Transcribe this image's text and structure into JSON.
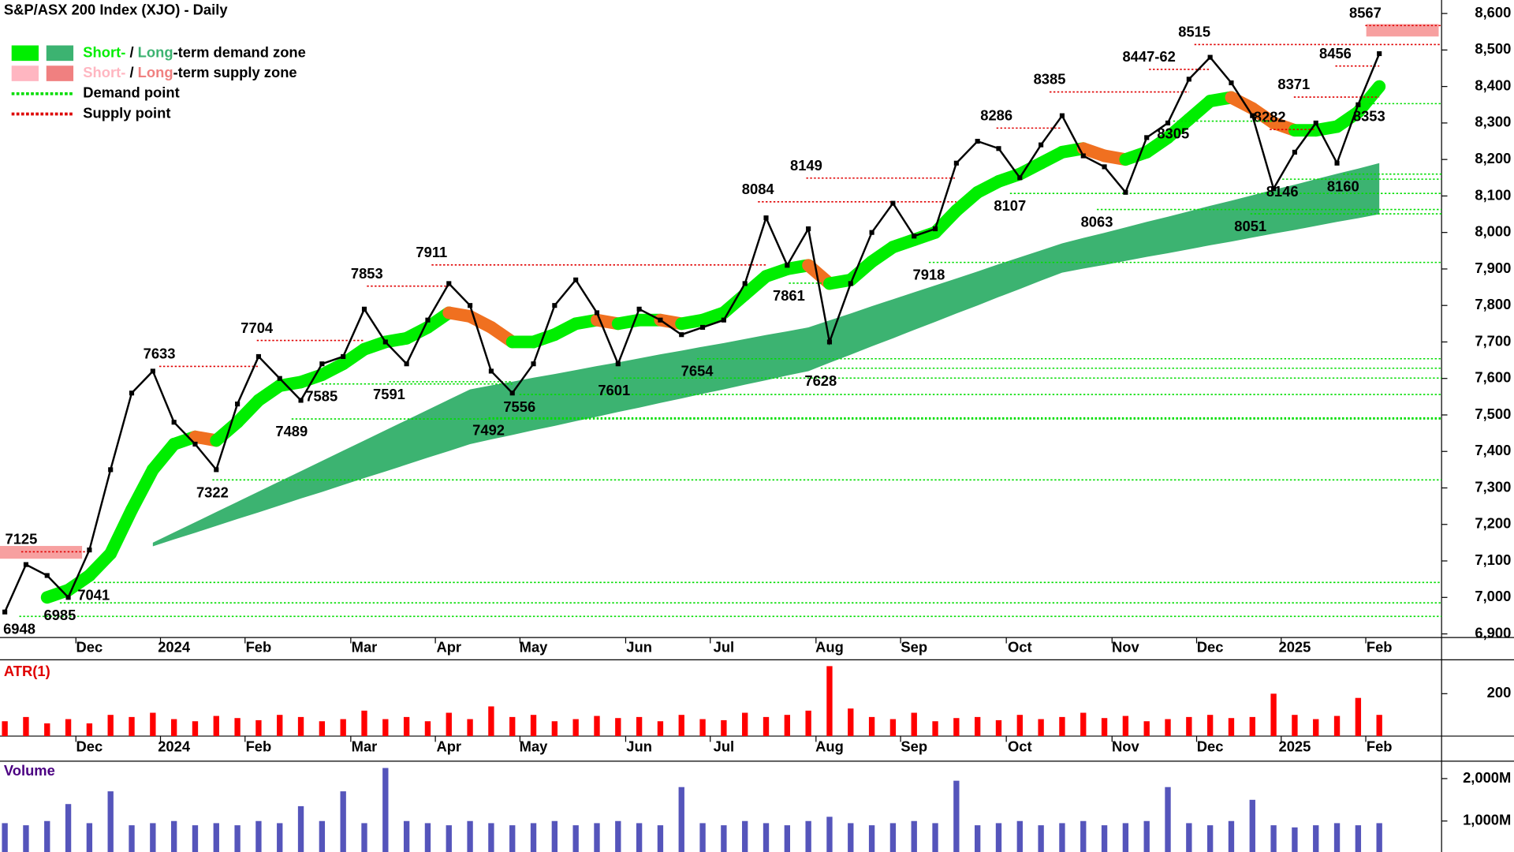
{
  "chart_data": [
    {
      "type": "line",
      "title": "S&P/ASX 200 Index (XJO) - Daily",
      "color": "#000000",
      "categories": [
        null,
        null,
        null,
        null,
        "Dec",
        null,
        null,
        null,
        "2024",
        null,
        null,
        null,
        "Feb",
        null,
        null,
        null,
        null,
        "Mar",
        null,
        null,
        null,
        "Apr",
        null,
        null,
        null,
        "May",
        null,
        null,
        null,
        null,
        "Jun",
        null,
        null,
        null,
        "Jul",
        null,
        null,
        null,
        null,
        "Aug",
        null,
        null,
        null,
        "Sep",
        null,
        null,
        null,
        null,
        "Oct",
        null,
        null,
        null,
        null,
        "Nov",
        null,
        null,
        null,
        "Dec",
        null,
        null,
        null,
        "2025",
        null,
        null,
        null,
        "Feb"
      ],
      "values": [
        6960,
        7090,
        7060,
        7000,
        7130,
        7350,
        7560,
        7620,
        7480,
        7420,
        7350,
        7530,
        7660,
        7600,
        7540,
        7640,
        7660,
        7790,
        7700,
        7640,
        7760,
        7860,
        7800,
        7620,
        7560,
        7640,
        7800,
        7870,
        7780,
        7640,
        7790,
        7760,
        7720,
        7740,
        7760,
        7860,
        8040,
        7910,
        8010,
        7700,
        7860,
        8000,
        8080,
        7990,
        8010,
        8190,
        8250,
        8230,
        8150,
        8240,
        8320,
        8210,
        8180,
        8110,
        8260,
        8300,
        8420,
        8480,
        8410,
        8320,
        8120,
        8220,
        8300,
        8190,
        8350,
        8490
      ],
      "short_term_zone": {
        "color": "#00ee00",
        "down_color": "#f07020",
        "values": [
          null,
          null,
          7000,
          7020,
          7060,
          7120,
          7240,
          7350,
          7420,
          7440,
          7430,
          7480,
          7540,
          7580,
          7590,
          7610,
          7640,
          7680,
          7700,
          7710,
          7740,
          7780,
          7770,
          7740,
          7700,
          7700,
          7720,
          7750,
          7760,
          7750,
          7760,
          7760,
          7750,
          7760,
          7780,
          7830,
          7880,
          7900,
          7910,
          7860,
          7870,
          7920,
          7960,
          7980,
          8000,
          8060,
          8110,
          8140,
          8160,
          8190,
          8220,
          8230,
          8210,
          8200,
          8220,
          8260,
          8310,
          8360,
          8370,
          8340,
          8300,
          8280,
          8280,
          8290,
          8330,
          8400
        ]
      },
      "long_term_zone": {
        "color": "#3cb371",
        "upper": [
          null,
          null,
          null,
          null,
          null,
          null,
          null,
          7150,
          7178,
          7206,
          7234,
          7262,
          7290,
          7318,
          7346,
          7374,
          7402,
          7430,
          7458,
          7486,
          7514,
          7542,
          7570,
          7581,
          7591,
          7602,
          7612,
          7623,
          7634,
          7644,
          7655,
          7666,
          7676,
          7687,
          7697,
          7708,
          7719,
          7729,
          7740,
          7759,
          7778,
          7798,
          7817,
          7836,
          7855,
          7874,
          7893,
          7913,
          7932,
          7951,
          7970,
          7985,
          7999,
          8014,
          8029,
          8043,
          8058,
          8073,
          8087,
          8102,
          8117,
          8131,
          8146,
          8161,
          8175,
          8190
        ],
        "lower": [
          null,
          null,
          null,
          null,
          null,
          null,
          null,
          7140,
          7159,
          7177,
          7196,
          7215,
          7233,
          7252,
          7271,
          7289,
          7308,
          7327,
          7345,
          7364,
          7383,
          7401,
          7420,
          7433,
          7445,
          7458,
          7470,
          7483,
          7495,
          7508,
          7520,
          7533,
          7545,
          7558,
          7570,
          7583,
          7595,
          7608,
          7620,
          7643,
          7665,
          7688,
          7710,
          7733,
          7755,
          7778,
          7800,
          7823,
          7845,
          7868,
          7890,
          7901,
          7911,
          7922,
          7933,
          7943,
          7954,
          7965,
          7975,
          7986,
          7997,
          8007,
          8018,
          8029,
          8039,
          8050
        ]
      },
      "supply_zones": [
        {
          "upper": 8571,
          "lower": 8537,
          "color": "#f7a0a0"
        },
        {
          "upper": 7141,
          "lower": 7106,
          "color": "#f7a0a0"
        }
      ],
      "supply_points": [
        7125,
        7633,
        7704,
        7853,
        7911,
        8084,
        8149,
        8286,
        8385,
        {
          "value": 8447,
          "label": "8447-62"
        },
        8515,
        8282,
        8371,
        8456,
        8567
      ],
      "demand_points": [
        6948,
        6985,
        7041,
        7322,
        7489,
        7585,
        7591,
        7492,
        7556,
        7601,
        7654,
        7861,
        7628,
        7918,
        8107,
        8063,
        8305,
        8051,
        8146,
        8160,
        8353
      ],
      "supply_color": "#e00000",
      "demand_color": "#00dd00",
      "ylim": [
        6890,
        8637
      ],
      "yticks": [
        {
          "value": 6900,
          "label": "6,900"
        },
        {
          "value": 7000,
          "label": "7,000"
        },
        {
          "value": 7100,
          "label": "7,100"
        },
        {
          "value": 7200,
          "label": "7,200"
        },
        {
          "value": 7300,
          "label": "7,300"
        },
        {
          "value": 7400,
          "label": "7,400"
        },
        {
          "value": 7500,
          "label": "7,500"
        },
        {
          "value": 7600,
          "label": "7,600"
        },
        {
          "value": 7700,
          "label": "7,700"
        },
        {
          "value": 7800,
          "label": "7,800"
        },
        {
          "value": 7900,
          "label": "7,900"
        },
        {
          "value": 8000,
          "label": "8,000"
        },
        {
          "value": 8100,
          "label": "8,100"
        },
        {
          "value": 8200,
          "label": "8,200"
        },
        {
          "value": 8300,
          "label": "8,300"
        },
        {
          "value": 8400,
          "label": "8,400"
        },
        {
          "value": 8500,
          "label": "8,500"
        },
        {
          "value": 8600,
          "label": "8,600"
        }
      ],
      "legend": [
        {
          "parts": [
            "Short-",
            " / ",
            "Long",
            "-term demand zone"
          ],
          "colors": [
            "#00ee00",
            "#3cb371"
          ]
        },
        {
          "parts": [
            "Short-",
            " / ",
            "Long",
            "-term supply zone"
          ],
          "colors": [
            "#ffb6c1",
            "#f08080"
          ]
        },
        {
          "text": "Demand point",
          "color": "#00dd00"
        },
        {
          "text": "Supply point",
          "color": "#dd0000"
        }
      ]
    },
    {
      "type": "bar",
      "title": "ATR(1)",
      "color": "#ff0000",
      "values": [
        70,
        90,
        60,
        80,
        60,
        100,
        90,
        110,
        80,
        70,
        95,
        85,
        75,
        100,
        90,
        70,
        80,
        120,
        80,
        90,
        70,
        110,
        80,
        140,
        90,
        100,
        70,
        80,
        95,
        85,
        90,
        70,
        100,
        80,
        75,
        110,
        90,
        100,
        120,
        330,
        130,
        90,
        80,
        110,
        70,
        85,
        90,
        75,
        100,
        80,
        90,
        110,
        85,
        95,
        70,
        80,
        90,
        100,
        85,
        90,
        200,
        100,
        80,
        95,
        180,
        100
      ],
      "ylim": [
        0,
        360
      ],
      "yticks": [
        200
      ]
    },
    {
      "type": "bar",
      "title": "Volume",
      "color": "#5555bb",
      "values": [
        950,
        900,
        1000,
        1400,
        950,
        1700,
        900,
        950,
        1000,
        900,
        950,
        900,
        1000,
        950,
        1350,
        1000,
        1700,
        950,
        2250,
        1000,
        950,
        900,
        1000,
        950,
        900,
        950,
        1000,
        900,
        950,
        1000,
        950,
        900,
        1800,
        950,
        900,
        1000,
        950,
        900,
        1000,
        1100,
        950,
        900,
        950,
        1000,
        950,
        1950,
        900,
        950,
        1000,
        900,
        950,
        1000,
        900,
        950,
        1000,
        1800,
        950,
        900,
        1000,
        1500,
        900,
        850,
        900,
        950,
        900,
        950
      ],
      "ylim": [
        270,
        2410
      ],
      "yticks": [
        {
          "value": 1000,
          "label": "1,000M"
        },
        {
          "value": 2000,
          "label": "2,000M"
        }
      ]
    }
  ]
}
